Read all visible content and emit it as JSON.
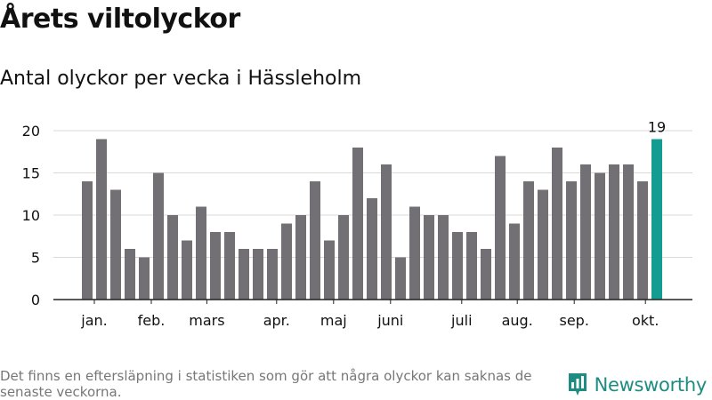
{
  "title": "Årets viltolyckor",
  "subtitle": "Antal olyckor per vecka i Hässleholm",
  "note": "Det finns en eftersläpning i statistiken som gör att några olyckor kan saknas de senaste veckorna.",
  "brand": {
    "name": "Newsworthy",
    "icon": "bar-chart-logo-icon"
  },
  "colors": {
    "bar": "#727074",
    "highlight": "#139c91",
    "grid": "#d9d9d9",
    "axis": "#222222"
  },
  "chart_data": {
    "type": "bar",
    "values": [
      14,
      19,
      13,
      6,
      5,
      15,
      10,
      7,
      11,
      8,
      8,
      6,
      6,
      6,
      9,
      10,
      14,
      7,
      10,
      18,
      12,
      16,
      5,
      11,
      10,
      10,
      8,
      8,
      6,
      17,
      9,
      14,
      13,
      18,
      14,
      16,
      15,
      16,
      16,
      14,
      19
    ],
    "highlight_index": 40,
    "highlight_label": "19",
    "ylim": [
      0,
      20
    ],
    "yticks": [
      0,
      5,
      10,
      15,
      20
    ],
    "month_labels": [
      {
        "label": "jan.",
        "at": 0.5
      },
      {
        "label": "feb.",
        "at": 4.5
      },
      {
        "label": "mars",
        "at": 8.4
      },
      {
        "label": "apr.",
        "at": 13.3
      },
      {
        "label": "maj",
        "at": 17.3
      },
      {
        "label": "juni",
        "at": 21.3
      },
      {
        "label": "juli",
        "at": 26.3
      },
      {
        "label": "aug.",
        "at": 30.2
      },
      {
        "label": "sep.",
        "at": 34.2
      },
      {
        "label": "okt.",
        "at": 39.2
      }
    ],
    "grid": true,
    "legend": "none"
  }
}
